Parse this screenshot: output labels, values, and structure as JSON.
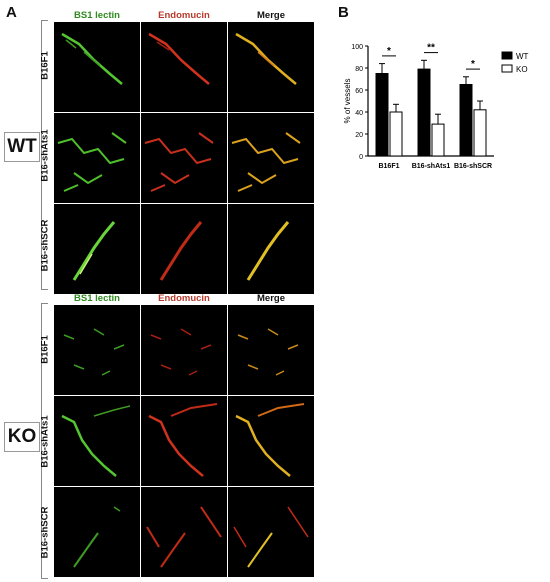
{
  "panels": {
    "a": "A",
    "b": "B"
  },
  "columns": [
    "BS1 lectin",
    "Endomucin",
    "Merge"
  ],
  "groups": [
    {
      "label": "WT",
      "rows": [
        "B16F1",
        "B16-shAts1",
        "B16-shSCR"
      ]
    },
    {
      "label": "KO",
      "rows": [
        "B16F1",
        "B16-shAts1",
        "B16-shSCR"
      ]
    }
  ],
  "colors": {
    "lectin": "#2f8a1f",
    "endomucin": "#b53a2c",
    "wt": "#000000",
    "ko": "#ffffff"
  },
  "chart_data": {
    "type": "bar",
    "categories": [
      "B16F1",
      "B16-shAts1",
      "B16-shSCR"
    ],
    "series": [
      {
        "name": "WT",
        "values": [
          75,
          79,
          65
        ],
        "errors": [
          9,
          8,
          7
        ]
      },
      {
        "name": "KO",
        "values": [
          40,
          29,
          42
        ],
        "errors": [
          7,
          9,
          8
        ]
      }
    ],
    "significance": [
      "*",
      "**",
      "*"
    ],
    "ylabel": "% of vessels",
    "yticks": [
      0,
      20,
      40,
      60,
      80,
      100
    ],
    "ylim": [
      0,
      100
    ],
    "legend_position": "right"
  }
}
